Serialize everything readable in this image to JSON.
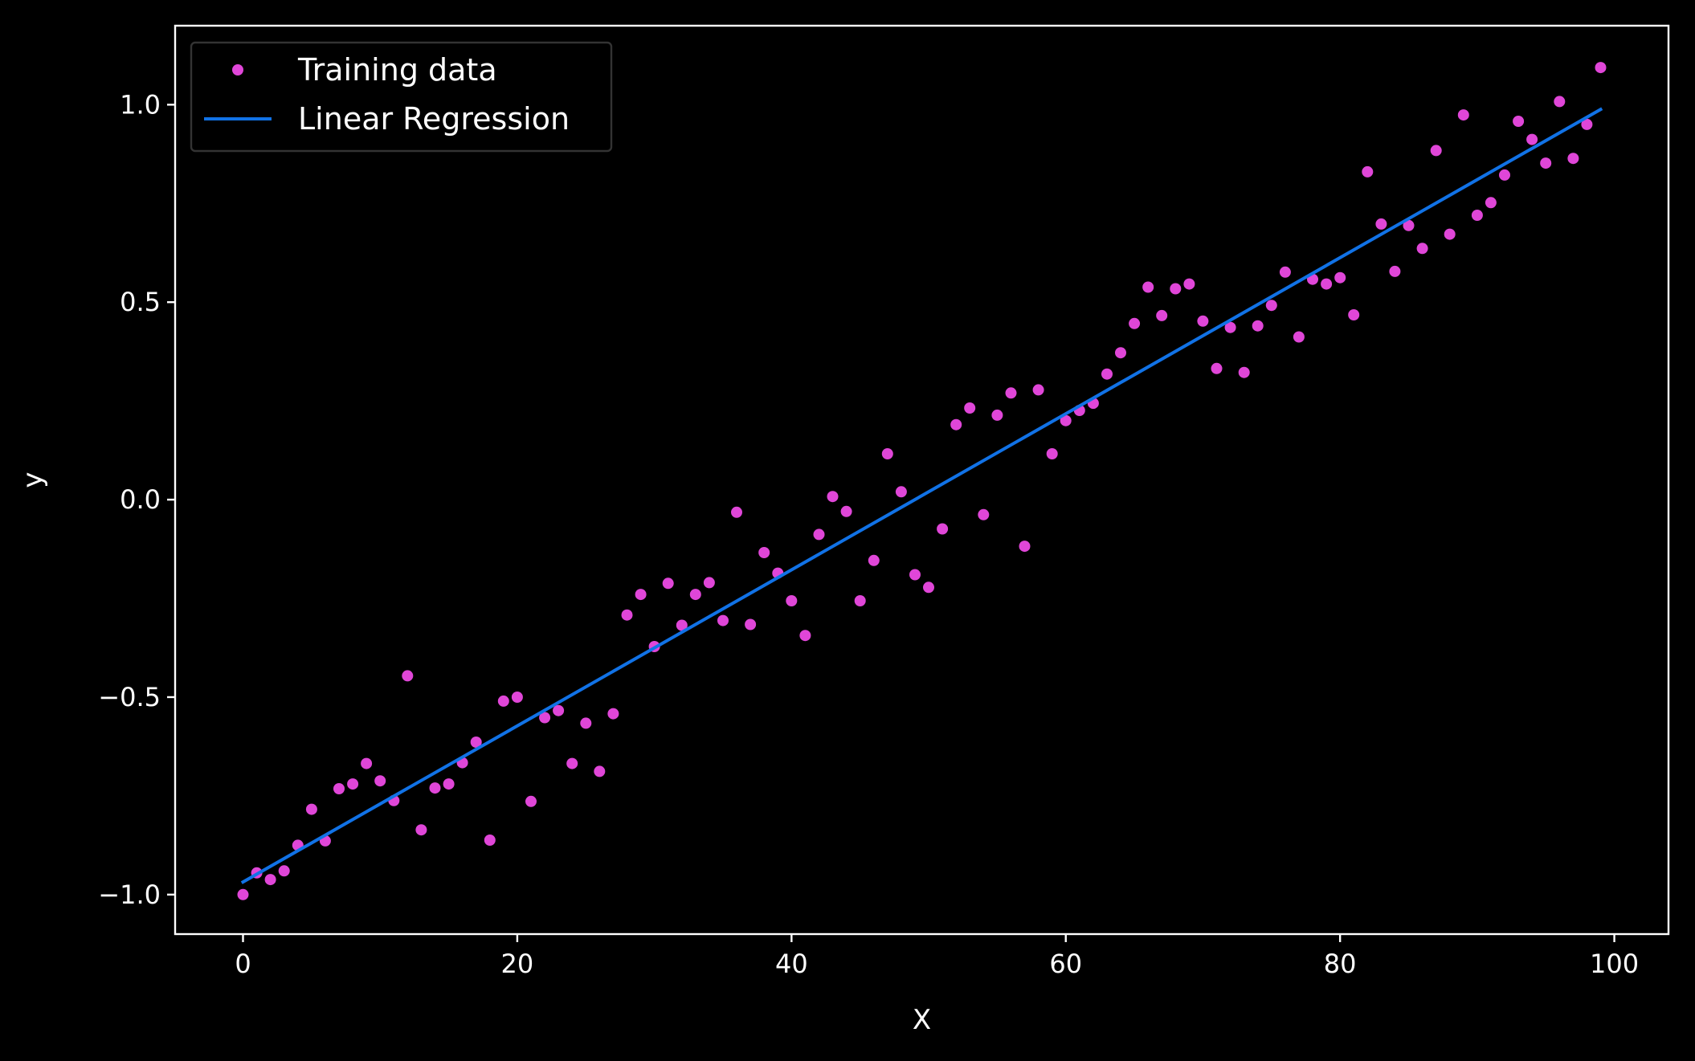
{
  "chart_data": {
    "type": "scatter",
    "xlabel": "X",
    "ylabel": "y",
    "xlim": [
      -4.95,
      103.95
    ],
    "ylim": [
      -1.1,
      1.2
    ],
    "xticks": [
      0,
      20,
      40,
      60,
      80,
      100
    ],
    "yticks": [
      -1.0,
      -0.5,
      0.0,
      0.5,
      1.0
    ],
    "xtick_labels": [
      "0",
      "20",
      "40",
      "60",
      "80",
      "100"
    ],
    "ytick_labels": [
      "−1.0",
      "−0.5",
      "0.0",
      "0.5",
      "1.0"
    ],
    "grid": false,
    "legend_position": "top-left",
    "colors": {
      "background": "#000000",
      "axes": "#ffffff",
      "points": "#e046d8",
      "line": "#1172e6",
      "legend_border": "#333333"
    },
    "series": [
      {
        "name": "Training data",
        "kind": "scatter",
        "x": [
          0,
          1,
          2,
          3,
          4,
          5,
          6,
          7,
          8,
          9,
          10,
          11,
          12,
          13,
          14,
          15,
          16,
          17,
          18,
          19,
          20,
          21,
          22,
          23,
          24,
          25,
          26,
          27,
          28,
          29,
          30,
          31,
          32,
          33,
          34,
          35,
          36,
          37,
          38,
          39,
          40,
          41,
          42,
          43,
          44,
          45,
          46,
          47,
          48,
          49,
          50,
          51,
          52,
          53,
          54,
          55,
          56,
          57,
          58,
          59,
          60,
          61,
          62,
          63,
          64,
          65,
          66,
          67,
          68,
          69,
          70,
          71,
          72,
          73,
          74,
          75,
          76,
          77,
          78,
          79,
          80,
          81,
          82,
          83,
          84,
          85,
          86,
          87,
          88,
          89,
          90,
          91,
          92,
          93,
          94,
          95,
          96,
          97,
          98,
          99
        ],
        "y": [
          -1.0,
          -0.945,
          -0.962,
          -0.94,
          -0.875,
          -0.784,
          -0.864,
          -0.732,
          -0.72,
          -0.668,
          -0.712,
          -0.762,
          -0.446,
          -0.836,
          -0.73,
          -0.72,
          -0.666,
          -0.614,
          -0.862,
          -0.51,
          -0.5,
          -0.764,
          -0.552,
          -0.534,
          -0.668,
          -0.566,
          -0.688,
          -0.542,
          -0.292,
          -0.24,
          -0.372,
          -0.212,
          -0.318,
          -0.24,
          -0.21,
          -0.306,
          -0.032,
          -0.316,
          -0.134,
          -0.186,
          -0.256,
          -0.344,
          -0.088,
          0.008,
          -0.03,
          -0.256,
          -0.154,
          0.116,
          0.02,
          -0.19,
          -0.222,
          -0.074,
          0.19,
          0.232,
          -0.038,
          0.214,
          0.27,
          -0.118,
          0.278,
          0.116,
          0.2,
          0.226,
          0.244,
          0.318,
          0.372,
          0.446,
          0.538,
          0.466,
          0.534,
          0.546,
          0.452,
          0.332,
          0.436,
          0.322,
          0.44,
          0.492,
          0.576,
          0.412,
          0.558,
          0.546,
          0.562,
          0.468,
          0.83,
          0.698,
          0.578,
          0.694,
          0.636,
          0.884,
          0.672,
          0.974,
          0.72,
          0.752,
          0.822,
          0.958,
          0.912,
          0.852,
          1.008,
          0.864,
          0.95,
          1.094
        ]
      },
      {
        "name": "Linear Regression",
        "kind": "line",
        "x": [
          0,
          99
        ],
        "y": [
          -0.968,
          0.988
        ]
      }
    ]
  }
}
